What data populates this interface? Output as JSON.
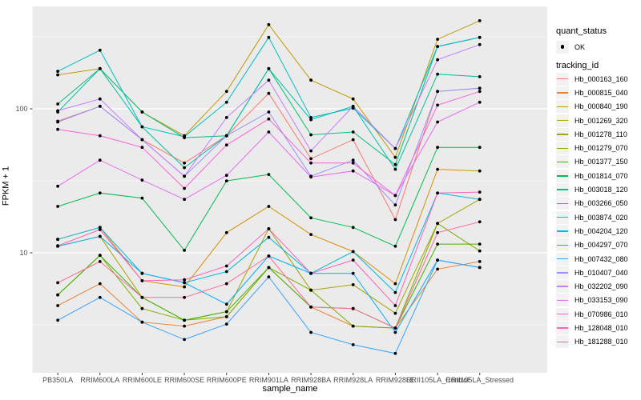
{
  "figure": {
    "background": "#FFFFFF",
    "panel_background": "#EBEBEB",
    "gridline_color": "#FFFFFF",
    "tick_label_color": "#4D4D4D",
    "point_color": "#000000"
  },
  "legend": {
    "quant_status_title": "quant_status",
    "quant_status_items": [
      {
        "label": "OK",
        "symbol": "black-point"
      }
    ],
    "tracking_id_title": "tracking_id",
    "key_background": "#F2F2F2",
    "position": "right"
  },
  "chart_data": {
    "type": "line",
    "title": "",
    "xlabel": "sample_name",
    "ylabel": "FPKM + 1",
    "y_scale": "log10",
    "y_ticks": [
      10,
      100
    ],
    "y_minor_gridlines": [
      3.162,
      31.62,
      316.2
    ],
    "ylim": [
      1.45,
      520
    ],
    "grid": "major+minor white on gray panel",
    "legend_position": "right",
    "markers": "black point at every observation (quant_status = OK)",
    "categories": [
      "PB350LA",
      "RRIM600LA",
      "RRIM600LE",
      "RRIM600SE",
      "RRIM600PE",
      "RRIM901LA",
      "RRIM928BA",
      "RRIM928LA",
      "RRIM928LE",
      "RRII105LA_Control",
      "RRII105LA_Stressed"
    ],
    "series": [
      {
        "name": "Hb_000163_160",
        "color": "#F8766D",
        "values": [
          82,
          104,
          61,
          42,
          65,
          128,
          45,
          61,
          17,
          132,
          139
        ]
      },
      {
        "name": "Hb_000815_040",
        "color": "#EA8331",
        "values": [
          4.3,
          6.1,
          3.3,
          3.1,
          3.6,
          7.9,
          4.2,
          3.1,
          3.0,
          7.7,
          8.7
        ]
      },
      {
        "name": "Hb_000840_190",
        "color": "#D89000",
        "values": [
          12.4,
          15,
          6.4,
          5.8,
          13.8,
          21,
          13.4,
          10.2,
          6.1,
          38,
          37
        ]
      },
      {
        "name": "Hb_001269_320",
        "color": "#C09B00",
        "values": [
          172,
          190,
          95,
          65,
          132,
          384,
          158,
          117,
          46,
          304,
          409
        ]
      },
      {
        "name": "Hb_001278_110",
        "color": "#A3A500",
        "values": [
          11.1,
          13,
          4.9,
          3.4,
          3.9,
          14.7,
          5.5,
          6.0,
          3.8,
          16,
          23.5
        ]
      },
      {
        "name": "Hb_001279_070",
        "color": "#7CAE00",
        "values": [
          5.1,
          9.6,
          4.1,
          3.4,
          3.6,
          7.9,
          5.5,
          3.1,
          3.0,
          16,
          10.3
        ]
      },
      {
        "name": "Hb_001377_150",
        "color": "#39B600",
        "values": [
          5.1,
          9.6,
          4.9,
          3.4,
          3.9,
          7.9,
          4.2,
          4.1,
          3.0,
          11.5,
          11.5
        ]
      },
      {
        "name": "Hb_001814_070",
        "color": "#00BB4E",
        "values": [
          21,
          26,
          24,
          10.4,
          31.6,
          35,
          17.5,
          15,
          11.1,
          54,
          54
        ]
      },
      {
        "name": "Hb_003018_120",
        "color": "#00BF7D",
        "values": [
          108,
          190,
          95,
          63,
          65,
          190,
          66,
          69,
          41,
          271,
          313
        ]
      },
      {
        "name": "Hb_003266_050",
        "color": "#00C1A3",
        "values": [
          95,
          190,
          75,
          39,
          65,
          190,
          84,
          104,
          38,
          174,
          167
        ]
      },
      {
        "name": "Hb_003874_020",
        "color": "#00BFC4",
        "values": [
          182,
          255,
          75,
          64,
          111,
          313,
          87,
          101,
          53,
          271,
          313
        ]
      },
      {
        "name": "Hb_004204_120",
        "color": "#00BAE0",
        "values": [
          12.4,
          15,
          7.2,
          6.2,
          7.4,
          12.8,
          7.2,
          10.2,
          5.3,
          26,
          23.5
        ]
      },
      {
        "name": "Hb_004297_070",
        "color": "#00B0F6",
        "values": [
          11.1,
          13,
          7.2,
          6.2,
          4.4,
          9.5,
          7.2,
          7.2,
          2.8,
          8.9,
          7.9
        ]
      },
      {
        "name": "Hb_007432_080",
        "color": "#35A2FF",
        "values": [
          3.4,
          4.9,
          3.3,
          2.5,
          3.2,
          6.8,
          2.8,
          2.3,
          2.0,
          8.9,
          7.9
        ]
      },
      {
        "name": "Hb_010407_040",
        "color": "#9590FF",
        "values": [
          81,
          104,
          61,
          34,
          65,
          95,
          34,
          44,
          21.5,
          132,
          139
        ]
      },
      {
        "name": "Hb_032202_090",
        "color": "#C77CFF",
        "values": [
          97,
          117,
          61,
          34,
          87,
          158,
          51,
          104,
          53,
          219,
          279
        ]
      },
      {
        "name": "Hb_033153_090",
        "color": "#E76BF3",
        "values": [
          29,
          44,
          32,
          23.5,
          34.5,
          69,
          33.6,
          37,
          25,
          81,
          111
        ]
      },
      {
        "name": "Hb_070986_010",
        "color": "#FA62DB",
        "values": [
          72,
          65,
          54,
          28,
          56,
          85,
          42,
          42,
          25,
          106,
          132
        ]
      },
      {
        "name": "Hb_128048_010",
        "color": "#FF62BC",
        "values": [
          11.2,
          14.5,
          6.4,
          6.5,
          8.1,
          14.7,
          7.2,
          8.9,
          4.3,
          26,
          26.4
        ]
      },
      {
        "name": "Hb_181288_010",
        "color": "#FF6A98",
        "values": [
          6.2,
          8.7,
          4.9,
          4.9,
          6.1,
          9.5,
          4.2,
          4.1,
          3.0,
          13.8,
          16.4
        ]
      }
    ]
  }
}
